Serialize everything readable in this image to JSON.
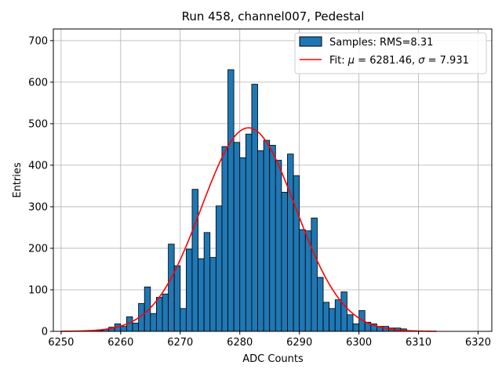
{
  "chart_data": {
    "type": "bar",
    "title": "Run 458, channel007, Pedestal",
    "xlabel": "ADC Counts",
    "ylabel": "Entries",
    "xlim": [
      6248.7,
      6322.3
    ],
    "ylim": [
      0,
      728
    ],
    "x_ticks": [
      6250,
      6260,
      6270,
      6280,
      6290,
      6300,
      6310,
      6320
    ],
    "y_ticks": [
      0,
      100,
      200,
      300,
      400,
      500,
      600,
      700
    ],
    "grid": true,
    "legend_position": "top-right",
    "bin_width": 1,
    "bar_color": "#1f77b4",
    "fit_color": "#ff0000",
    "series": [
      {
        "name": "Samples: RMS=8.31",
        "kind": "histogram",
        "bins": [
          [
            6253,
            1
          ],
          [
            6254,
            1
          ],
          [
            6255,
            1
          ],
          [
            6256,
            2
          ],
          [
            6257,
            5
          ],
          [
            6258,
            10
          ],
          [
            6259,
            18
          ],
          [
            6260,
            12
          ],
          [
            6261,
            35
          ],
          [
            6262,
            20
          ],
          [
            6263,
            67
          ],
          [
            6264,
            107
          ],
          [
            6265,
            43
          ],
          [
            6266,
            82
          ],
          [
            6267,
            90
          ],
          [
            6268,
            210
          ],
          [
            6269,
            158
          ],
          [
            6270,
            55
          ],
          [
            6271,
            198
          ],
          [
            6272,
            342
          ],
          [
            6273,
            175
          ],
          [
            6274,
            238
          ],
          [
            6275,
            178
          ],
          [
            6276,
            302
          ],
          [
            6277,
            445
          ],
          [
            6278,
            630
          ],
          [
            6279,
            455
          ],
          [
            6280,
            418
          ],
          [
            6281,
            475
          ],
          [
            6282,
            595
          ],
          [
            6283,
            435
          ],
          [
            6284,
            460
          ],
          [
            6285,
            448
          ],
          [
            6286,
            412
          ],
          [
            6287,
            335
          ],
          [
            6288,
            427
          ],
          [
            6289,
            375
          ],
          [
            6290,
            245
          ],
          [
            6291,
            242
          ],
          [
            6292,
            273
          ],
          [
            6293,
            130
          ],
          [
            6294,
            70
          ],
          [
            6295,
            55
          ],
          [
            6296,
            76
          ],
          [
            6297,
            95
          ],
          [
            6298,
            40
          ],
          [
            6299,
            18
          ],
          [
            6300,
            50
          ],
          [
            6301,
            22
          ],
          [
            6302,
            18
          ],
          [
            6303,
            12
          ],
          [
            6304,
            12
          ],
          [
            6305,
            8
          ],
          [
            6306,
            8
          ],
          [
            6307,
            6
          ],
          [
            6308,
            2
          ],
          [
            6309,
            1
          ],
          [
            6310,
            1
          ]
        ]
      },
      {
        "name": "Fit: μ = 6281.46, σ = 7.931",
        "kind": "gaussian",
        "mu": 6281.46,
        "sigma": 7.931,
        "amplitude": 490,
        "x_range": [
          6250,
          6313
        ]
      }
    ]
  },
  "legend": {
    "samples_label": "Samples: RMS=8.31",
    "fit_prefix": "Fit: ",
    "fit_mu_symbol": "μ",
    "fit_mu_value": " = 6281.46, ",
    "fit_sigma_symbol": "σ",
    "fit_sigma_value": " = 7.931"
  }
}
